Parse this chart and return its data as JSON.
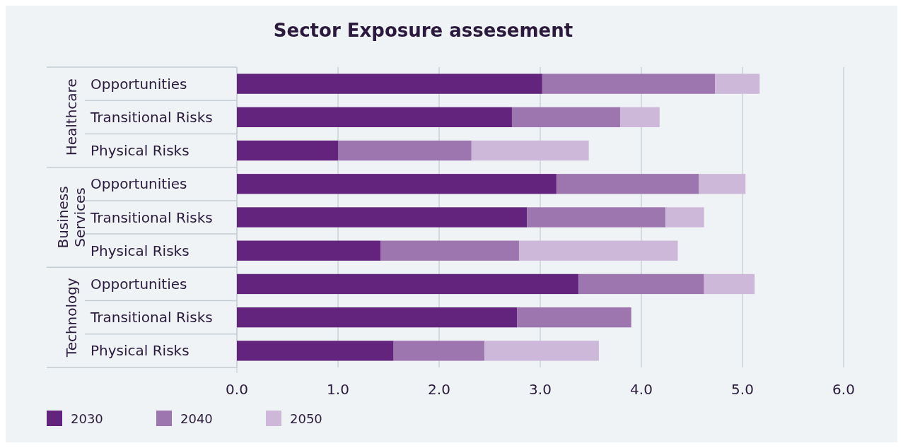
{
  "chart_data": {
    "type": "bar",
    "orientation": "horizontal",
    "stacked": true,
    "title": "Sector Exposure assesement",
    "categories": [
      "Opportunities",
      "Transitional Risks",
      "Physical Risks",
      "Opportunities",
      "Transitional Risks",
      "Physical Risks",
      "Opportunities",
      "Transitional Risks",
      "Physical Risks"
    ],
    "annotations": [
      "Healthcare",
      "Business Services",
      "Technology"
    ],
    "series": [
      {
        "name": "2030",
        "color": "#63247d",
        "values": [
          3.02,
          2.72,
          1.0,
          3.16,
          2.87,
          1.42,
          3.38,
          2.77,
          1.55
        ]
      },
      {
        "name": "2040",
        "color": "#9d76b0",
        "values": [
          1.71,
          1.07,
          1.32,
          1.41,
          1.37,
          1.37,
          1.24,
          1.13,
          0.9
        ]
      },
      {
        "name": "2050",
        "color": "#cdb8da",
        "values": [
          0.44,
          0.39,
          1.16,
          0.46,
          0.38,
          1.57,
          0.5,
          null,
          1.13
        ]
      }
    ],
    "xlim": [
      0,
      6
    ],
    "xticks": [
      {
        "value": 0,
        "label": "0.0"
      },
      {
        "value": 1,
        "label": "1.0"
      },
      {
        "value": 2,
        "label": "2.0"
      },
      {
        "value": 3,
        "label": "3.0"
      },
      {
        "value": 4,
        "label": "4.0"
      },
      {
        "value": 5,
        "label": "5.0"
      },
      {
        "value": 6,
        "label": "6.0"
      }
    ],
    "grid": "x",
    "legend": "bottom left"
  }
}
